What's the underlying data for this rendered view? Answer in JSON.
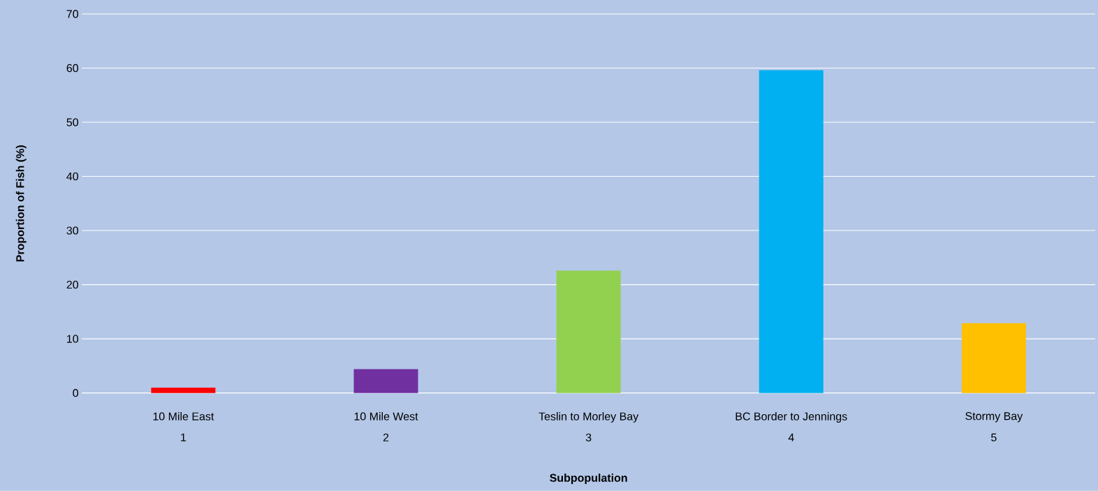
{
  "chart_data": {
    "type": "bar",
    "categories": [
      "10 Mile East",
      "10 Mile West",
      "Teslin to Morley Bay",
      "BC Border to Jennings",
      "Stormy Bay"
    ],
    "colors": [
      "#ff0000",
      "#7030a0",
      "#92d050",
      "#00b0f0",
      "#ffc000"
    ],
    "values": [
      1.0,
      4.4,
      22.6,
      59.6,
      12.9
    ],
    "ylim": [
      0,
      70
    ],
    "yticks": [
      0,
      10,
      20,
      30,
      40,
      50,
      60,
      70
    ],
    "grid": "y",
    "xlabel": "Subpopulation",
    "ylabel": "Proportion of Fish (%)",
    "annotations": [
      "1",
      "2",
      "3",
      "4",
      "5"
    ]
  }
}
